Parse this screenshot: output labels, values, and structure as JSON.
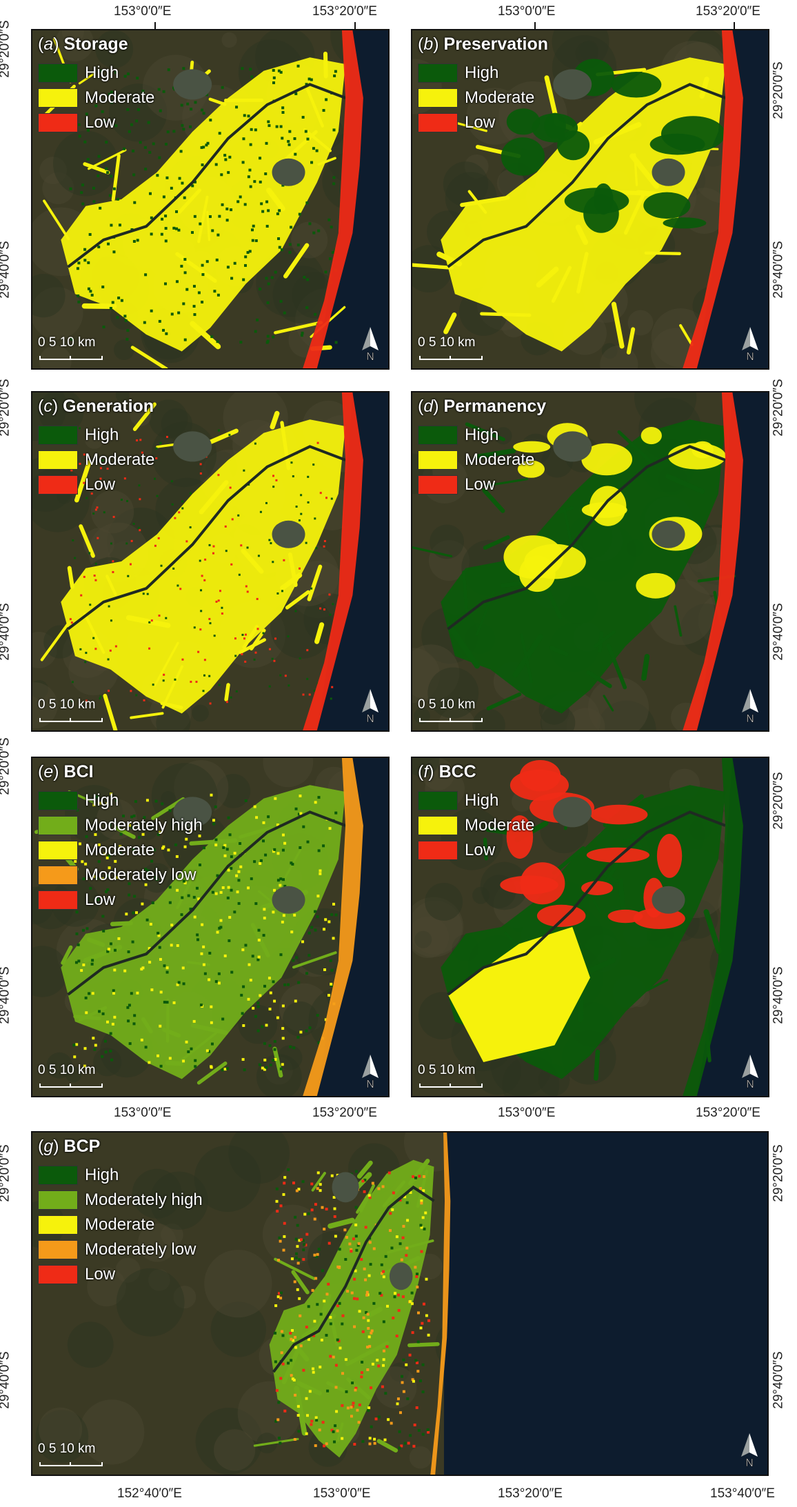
{
  "colors": {
    "high": "#0b5a0b",
    "moderately_high": "#72ad1a",
    "moderate": "#f6f20c",
    "moderately_low": "#f59a1a",
    "low": "#ef2b16",
    "ocean": "#0d1c2e",
    "land": "#3b3a24"
  },
  "top_coords": {
    "lon1": "153°0′0″E",
    "lon2": "153°20′0″E"
  },
  "mid_coords": {
    "lon1": "153°0′0″E",
    "lon2": "153°20′0″E"
  },
  "bottom_coords": {
    "lon1": "152°40′0″E",
    "lon2": "153°0′0″E",
    "lon3": "153°20′0″E",
    "lon4": "153°40′0″E"
  },
  "lat_labels": {
    "lat1": "29°20′0″S",
    "lat2": "29°40′0″S"
  },
  "scale": {
    "zero": "0",
    "five": "5",
    "ten": "10 km"
  },
  "north_label": "N",
  "panels": {
    "a": {
      "letter": "a",
      "title": "Storage",
      "legend": [
        "High",
        "Moderate",
        "Low"
      ]
    },
    "b": {
      "letter": "b",
      "title": "Preservation",
      "legend": [
        "High",
        "Moderate",
        "Low"
      ]
    },
    "c": {
      "letter": "c",
      "title": "Generation",
      "legend": [
        "High",
        "Moderate",
        "Low"
      ]
    },
    "d": {
      "letter": "d",
      "title": "Permanency",
      "legend": [
        "High",
        "Moderate",
        "Low"
      ]
    },
    "e": {
      "letter": "e",
      "title": "BCI",
      "legend": [
        "High",
        "Moderately high",
        "Moderate",
        "Moderately low",
        "Low"
      ]
    },
    "f": {
      "letter": "f",
      "title": "BCC",
      "legend": [
        "High",
        "Moderate",
        "Low"
      ]
    },
    "g": {
      "letter": "g",
      "title": "BCP",
      "legend": [
        "High",
        "Moderately high",
        "Moderate",
        "Moderately low",
        "Low"
      ]
    }
  }
}
